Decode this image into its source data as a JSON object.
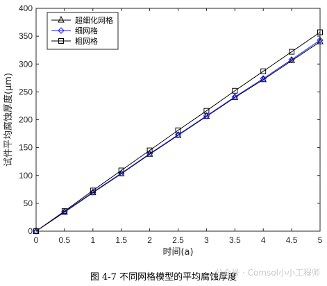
{
  "caption": "图 4-7  不同网格模型的平均腐蚀厚度",
  "watermark": "公众号 · Comsol小小工程师",
  "chart_data": {
    "type": "line",
    "xlabel": "时间(a)",
    "ylabel": "试件平均腐蚀厚度(μm)",
    "xlim": [
      0,
      5
    ],
    "ylim": [
      0,
      400
    ],
    "xticks": [
      0,
      0.5,
      1,
      1.5,
      2,
      2.5,
      3,
      3.5,
      4,
      4.5,
      5
    ],
    "xtick_labels": [
      "0",
      "0.5",
      "1",
      "1.5",
      "2",
      "2.5",
      "3",
      "3.5",
      "4",
      "4.5",
      "5"
    ],
    "yticks": [
      0,
      50,
      100,
      150,
      200,
      250,
      300,
      350,
      400
    ],
    "ytick_labels": [
      "0",
      "50",
      "100",
      "150",
      "200",
      "250",
      "300",
      "350",
      "400"
    ],
    "grid": false,
    "legend_position": "top-left",
    "x": [
      0,
      0.5,
      1,
      1.5,
      2,
      2.5,
      3,
      3.5,
      4,
      4.5,
      5
    ],
    "series": [
      {
        "name": "超细化网格",
        "marker": "triangle",
        "color": "#000000",
        "values": [
          0,
          34,
          69,
          103,
          138,
          172,
          206,
          240,
          272,
          306,
          340
        ]
      },
      {
        "name": "细网格",
        "marker": "diamond",
        "color": "#1a1aff",
        "values": [
          0,
          35,
          70,
          104,
          139,
          173,
          207,
          241,
          274,
          308,
          343
        ]
      },
      {
        "name": "粗网格",
        "marker": "square",
        "color": "#000000",
        "values": [
          0,
          36,
          73,
          109,
          145,
          181,
          216,
          252,
          287,
          322,
          357
        ]
      }
    ]
  }
}
